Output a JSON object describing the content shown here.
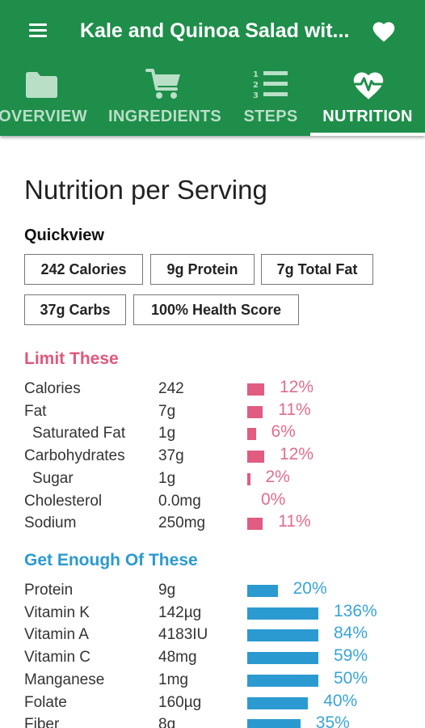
{
  "app": {
    "title": "Kale and Quinoa Salad wit...",
    "accent": "#1e8e4a",
    "icons": {
      "menu": "menu-icon",
      "favorite": "heart-icon"
    }
  },
  "tabs": [
    {
      "label": "OVERVIEW",
      "icon": "folder-icon",
      "active": false
    },
    {
      "label": "INGREDIENTS",
      "icon": "cart-icon",
      "active": false
    },
    {
      "label": "STEPS",
      "icon": "numbered-list-icon",
      "active": false
    },
    {
      "label": "NUTRITION",
      "icon": "heart-pulse-icon",
      "active": true
    }
  ],
  "nutrition": {
    "heading": "Nutrition per Serving",
    "quickview_label": "Quickview",
    "quickview": [
      "242 Calories",
      "9g Protein",
      "7g Total Fat",
      "37g Carbs",
      "100% Health Score"
    ],
    "limit": {
      "title": "Limit These",
      "color": "#e05c80",
      "rows": [
        {
          "name": "Calories",
          "amount": "242",
          "percent": "12%",
          "value": 12
        },
        {
          "name": "Fat",
          "amount": "7g",
          "percent": "11%",
          "value": 11
        },
        {
          "name": "Saturated Fat",
          "amount": "1g",
          "percent": "6%",
          "value": 6
        },
        {
          "name": "Carbohydrates",
          "amount": "37g",
          "percent": "12%",
          "value": 12
        },
        {
          "name": "Sugar",
          "amount": "1g",
          "percent": "2%",
          "value": 2
        },
        {
          "name": "Cholesterol",
          "amount": "0.0mg",
          "percent": "0%",
          "value": 0
        },
        {
          "name": "Sodium",
          "amount": "250mg",
          "percent": "11%",
          "value": 11
        }
      ]
    },
    "enough": {
      "title": "Get Enough Of These",
      "color": "#2b9ad1",
      "rows": [
        {
          "name": "Protein",
          "amount": "9g",
          "percent": "20%",
          "value": 20
        },
        {
          "name": "Vitamin K",
          "amount": "142µg",
          "percent": "136%",
          "value": 136
        },
        {
          "name": "Vitamin A",
          "amount": "4183IU",
          "percent": "84%",
          "value": 84
        },
        {
          "name": "Vitamin C",
          "amount": "48mg",
          "percent": "59%",
          "value": 59
        },
        {
          "name": "Manganese",
          "amount": "1mg",
          "percent": "50%",
          "value": 50
        },
        {
          "name": "Folate",
          "amount": "160µg",
          "percent": "40%",
          "value": 40
        },
        {
          "name": "Fiber",
          "amount": "8g",
          "percent": "35%",
          "value": 35
        }
      ]
    }
  }
}
